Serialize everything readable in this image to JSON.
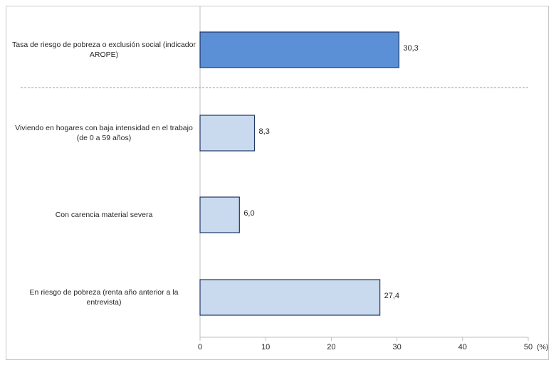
{
  "chart_data": {
    "type": "bar",
    "orientation": "horizontal",
    "categories": [
      "Tasa de riesgo de pobreza o exclusión social (indicador AROPE)",
      "Viviendo en hogares con baja intensidad en el trabajo (de 0 a 59 años)",
      "Con carencia material severa",
      "En riesgo de pobreza (renta año anterior a la entrevista)"
    ],
    "values": [
      30.3,
      8.3,
      6.0,
      27.4
    ],
    "value_labels": [
      "30,3",
      "8,3",
      "6,0",
      "27,4"
    ],
    "xlim": [
      0,
      50
    ],
    "xticks": [
      0,
      10,
      20,
      30,
      40,
      50
    ],
    "xtick_labels": [
      "0",
      "10",
      "20",
      "30",
      "40",
      "50"
    ],
    "xunit": "(%)",
    "colors": {
      "highlight": "#5b8fd6",
      "normal": "#c9d9ee",
      "border": "#1f3864"
    },
    "highlight_index": 0,
    "separator_after_index": 0,
    "grid": false
  }
}
